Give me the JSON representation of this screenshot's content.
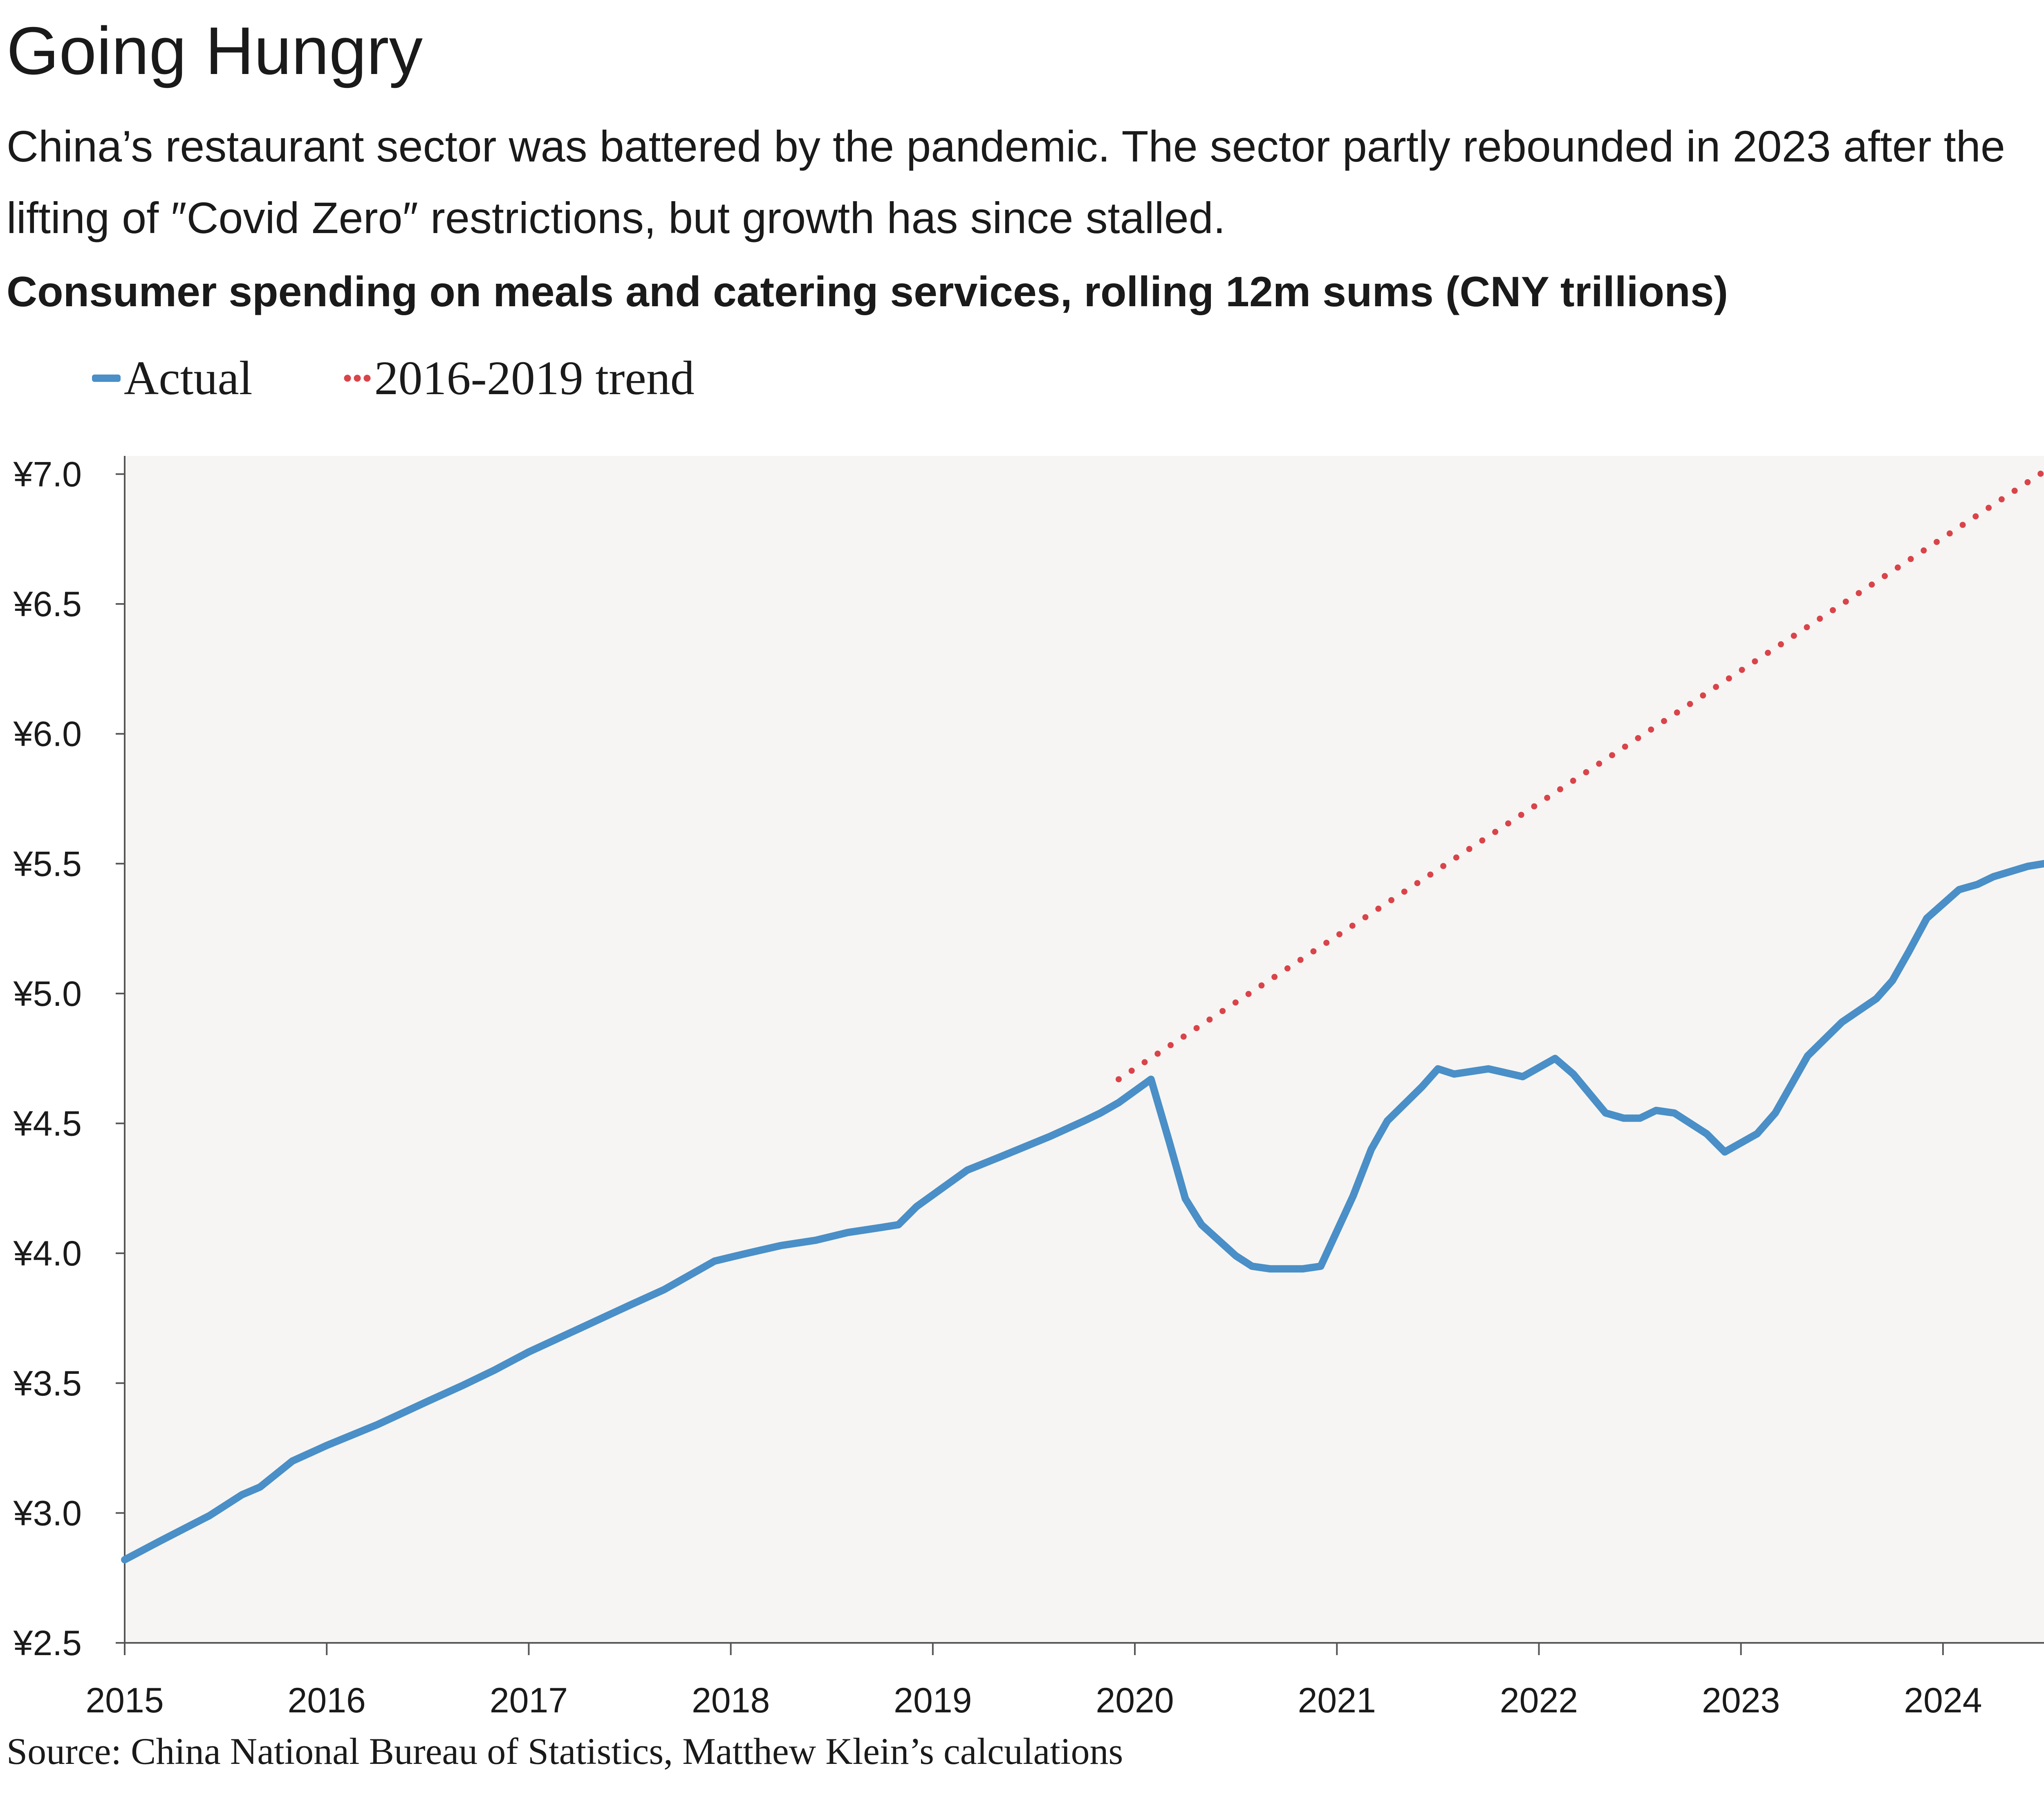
{
  "header": {
    "title": "Going Hungry",
    "subtitle": "China’s restaurant sector was battered by the pandemic. The sector partly rebounded in 2023 after the lifting of ″Covid Zero″ restrictions, but growth has since stalled.",
    "chart_title": "Consumer spending on meals and catering services, rolling 12m sums (CNY trillions)"
  },
  "source": "Source: China National Bureau of Statistics, Matthew Klein’s calculations",
  "colors": {
    "actual": "#4a8fc7",
    "trend": "#d9444a",
    "plot_background": "#f6f5f3",
    "axis": "#555555"
  },
  "chart_data": {
    "type": "line",
    "title": "Consumer spending on meals and catering services, rolling 12m sums (CNY trillions)",
    "xlabel": "",
    "ylabel": "",
    "xlim": [
      2015.0,
      2024.5
    ],
    "ylim": [
      2.5,
      7.07
    ],
    "y_ticks": [
      2.5,
      3.0,
      3.5,
      4.0,
      4.5,
      5.0,
      5.5,
      6.0,
      6.5,
      7.0
    ],
    "y_tick_labels": [
      "¥2.5",
      "¥3.0",
      "¥3.5",
      "¥4.0",
      "¥4.5",
      "¥5.0",
      "¥5.5",
      "¥6.0",
      "¥6.5",
      "¥7.0"
    ],
    "x_ticks": [
      2015,
      2016,
      2017,
      2018,
      2019,
      2020,
      2021,
      2022,
      2023,
      2024
    ],
    "x_tick_labels": [
      "2015",
      "2016",
      "2017",
      "2018",
      "2019",
      "2020",
      "2021",
      "2022",
      "2023",
      "2024"
    ],
    "grid": false,
    "legend_position": "top-left",
    "series": [
      {
        "name": "Actual",
        "style": "solid",
        "x": [
          2015.0,
          2015.17,
          2015.42,
          2015.58,
          2015.67,
          2015.83,
          2016.0,
          2016.25,
          2016.5,
          2016.67,
          2016.83,
          2017.0,
          2017.25,
          2017.5,
          2017.67,
          2017.92,
          2018.08,
          2018.25,
          2018.42,
          2018.58,
          2018.75,
          2018.83,
          2018.92,
          2019.17,
          2019.33,
          2019.58,
          2019.75,
          2019.83,
          2019.92,
          2020.08,
          2020.17,
          2020.25,
          2020.33,
          2020.5,
          2020.58,
          2020.67,
          2020.83,
          2020.92,
          2021.08,
          2021.17,
          2021.25,
          2021.42,
          2021.5,
          2021.58,
          2021.75,
          2021.92,
          2022.08,
          2022.17,
          2022.33,
          2022.42,
          2022.5,
          2022.58,
          2022.67,
          2022.83,
          2022.92,
          2023.08,
          2023.17,
          2023.33,
          2023.5,
          2023.67,
          2023.75,
          2023.83,
          2023.92,
          2024.08,
          2024.17,
          2024.25,
          2024.42,
          2024.5
        ],
        "y": [
          2.82,
          2.89,
          2.99,
          3.07,
          3.1,
          3.2,
          3.26,
          3.34,
          3.43,
          3.49,
          3.55,
          3.62,
          3.71,
          3.8,
          3.86,
          3.97,
          4.0,
          4.03,
          4.05,
          4.08,
          4.1,
          4.11,
          4.18,
          4.32,
          4.37,
          4.45,
          4.51,
          4.54,
          4.58,
          4.67,
          4.43,
          4.21,
          4.11,
          3.99,
          3.95,
          3.94,
          3.94,
          3.95,
          4.22,
          4.4,
          4.51,
          4.64,
          4.71,
          4.69,
          4.71,
          4.68,
          4.75,
          4.69,
          4.54,
          4.52,
          4.52,
          4.55,
          4.54,
          4.46,
          4.39,
          4.46,
          4.54,
          4.76,
          4.89,
          4.98,
          5.05,
          5.16,
          5.29,
          5.4,
          5.42,
          5.45,
          5.49,
          5.5
        ]
      },
      {
        "name": "2016-2019 trend",
        "style": "dotted",
        "x": [
          2019.92,
          2024.5
        ],
        "y": [
          4.67,
          7.01
        ]
      }
    ]
  }
}
